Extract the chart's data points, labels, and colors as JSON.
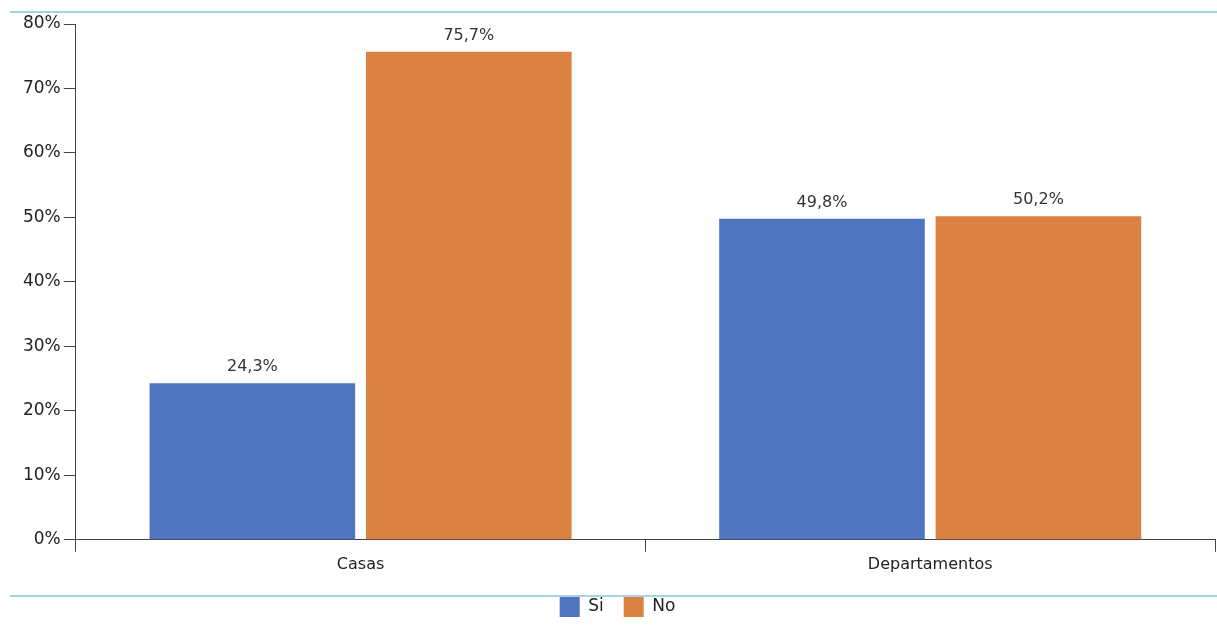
{
  "chart_data": {
    "type": "bar",
    "categories": [
      "Casas",
      "Departamentos"
    ],
    "series": [
      {
        "name": "Si",
        "color": "#4f74c0",
        "values": [
          24.3,
          49.8
        ],
        "value_labels": [
          "24,3%",
          "49,8%"
        ]
      },
      {
        "name": "No",
        "color": "#db8142",
        "values": [
          75.7,
          50.2
        ],
        "value_labels": [
          "75,7%",
          "50,2%"
        ]
      }
    ],
    "ylim": [
      0,
      80
    ],
    "yticks": [
      {
        "value": 0,
        "label": "0%"
      },
      {
        "value": 10,
        "label": "10%"
      },
      {
        "value": 20,
        "label": "20%"
      },
      {
        "value": 30,
        "label": "30%"
      },
      {
        "value": 40,
        "label": "40%"
      },
      {
        "value": 50,
        "label": "50%"
      },
      {
        "value": 60,
        "label": "60%"
      },
      {
        "value": 70,
        "label": "70%"
      },
      {
        "value": 80,
        "label": "80%"
      }
    ],
    "legend": "bottom"
  }
}
